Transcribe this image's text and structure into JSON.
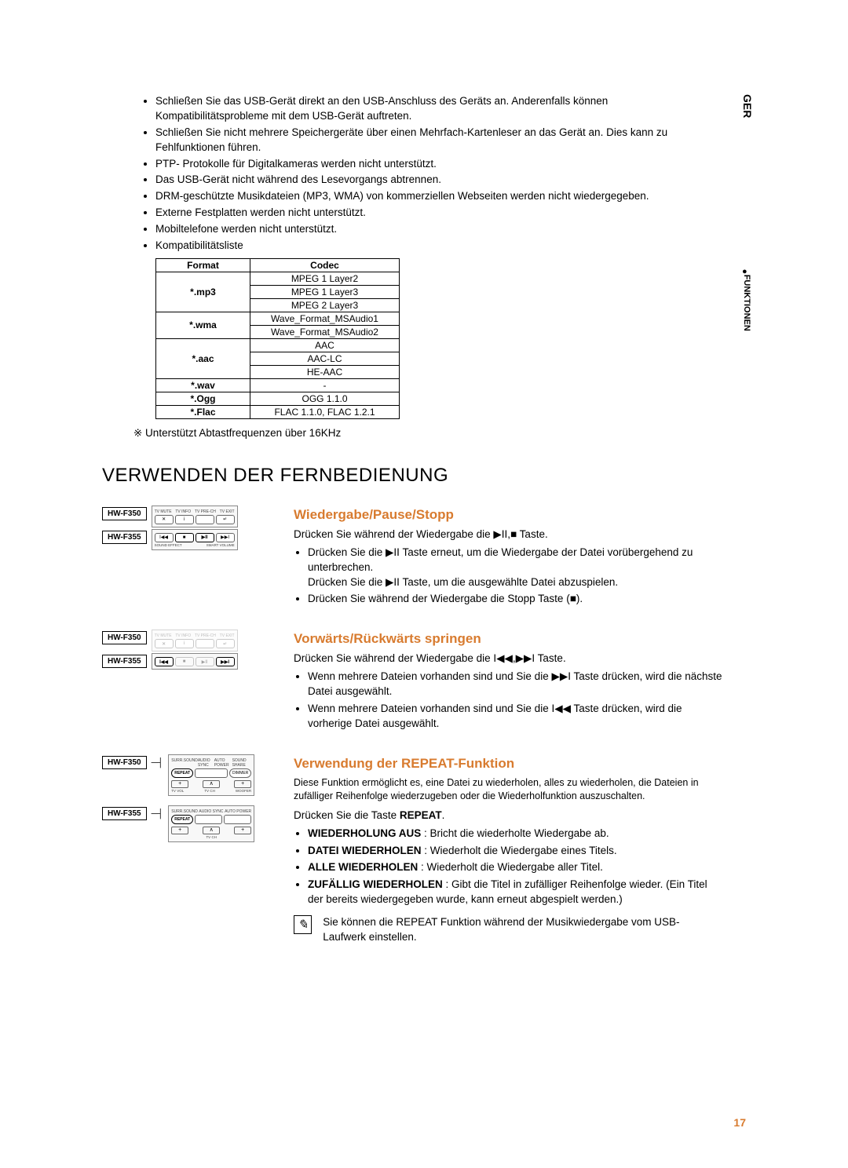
{
  "side": {
    "region": "GER",
    "section": "FUNKTIONEN"
  },
  "page_number": "17",
  "bullets": [
    "Schließen Sie das USB-Gerät direkt an den USB-Anschluss des Geräts an. Anderenfalls können Kompatibilitätsprobleme mit dem USB-Gerät auftreten.",
    "Schließen Sie nicht mehrere Speichergeräte über einen Mehrfach-Kartenleser an das Gerät an. Dies kann zu Fehlfunktionen führen.",
    "PTP- Protokolle für Digitalkameras werden nicht unterstützt.",
    "Das USB-Gerät nicht während des Lesevorgangs abtrennen.",
    "DRM-geschützte Musikdateien (MP3, WMA) von kommerziellen Webseiten werden nicht wiedergegeben.",
    "Externe Festplatten werden nicht unterstützt.",
    "Mobiltelefone werden nicht unterstützt.",
    "Kompatibilitätsliste"
  ],
  "codec_table": {
    "headers": [
      "Format",
      "Codec"
    ],
    "rows": [
      {
        "format": "*.mp3",
        "codecs": [
          "MPEG 1 Layer2",
          "MPEG 1 Layer3",
          "MPEG 2 Layer3"
        ]
      },
      {
        "format": "*.wma",
        "codecs": [
          "Wave_Format_MSAudio1",
          "Wave_Format_MSAudio2"
        ]
      },
      {
        "format": "*.aac",
        "codecs": [
          "AAC",
          "AAC-LC",
          "HE-AAC"
        ]
      },
      {
        "format": "*.wav",
        "codecs": [
          "-"
        ]
      },
      {
        "format": "*.Ogg",
        "codecs": [
          "OGG 1.1.0"
        ]
      },
      {
        "format": "*.Flac",
        "codecs": [
          "FLAC 1.1.0, FLAC 1.2.1"
        ]
      }
    ]
  },
  "note_freq": "※ Unterstützt Abtastfrequenzen über 16KHz",
  "h1": "VERWENDEN DER FERNBEDIENUNG",
  "models": {
    "a": "HW-F350",
    "b": "HW-F355"
  },
  "section1": {
    "heading": "Wiedergabe/Pause/Stopp",
    "intro": "Drücken Sie während der Wiedergabe die ▶II,■ Taste.",
    "items": [
      "Drücken Sie die ▶II Taste erneut, um die Wiedergabe der Datei vorübergehend zu unterbrechen.\nDrücken Sie die ▶II Taste, um die ausgewählte Datei abzuspielen.",
      "Drücken Sie während der Wiedergabe die Stopp Taste (■)."
    ]
  },
  "section2": {
    "heading": "Vorwärts/Rückwärts springen",
    "intro": "Drücken Sie während der Wiedergabe die I◀◀,▶▶I Taste.",
    "items": [
      "Wenn mehrere Dateien vorhanden sind und Sie die ▶▶I Taste drücken, wird die nächste Datei ausgewählt.",
      "Wenn mehrere Dateien vorhanden sind und Sie die I◀◀ Taste drücken, wird die vorherige Datei ausgewählt."
    ]
  },
  "section3": {
    "heading": "Verwendung der REPEAT-Funktion",
    "intro1": "Diese Funktion ermöglicht es, eine Datei zu wiederholen, alles zu wiederholen, die Dateien in zufälliger Reihenfolge wiederzugeben oder die Wiederholfunktion auszuschalten.",
    "intro2_pre": "Drücken Sie die Taste ",
    "intro2_bold": "REPEAT",
    "intro2_post": ".",
    "items": [
      {
        "bold": "WIEDERHOLUNG AUS",
        "rest": " : Bricht die wiederholte Wiedergabe ab."
      },
      {
        "bold": "DATEI WIEDERHOLEN",
        "rest": " : Wiederholt die Wiedergabe eines Titels."
      },
      {
        "bold": "ALLE WIEDERHOLEN",
        "rest": " : Wiederholt die Wiedergabe aller Titel."
      },
      {
        "bold": "ZUFÄLLIG WIEDERHOLEN",
        "rest": " : Gibt die Titel in zufälliger Reihenfolge wieder. (Ein Titel der bereits wiedergegeben wurde, kann erneut abgespielt werden.)"
      }
    ],
    "note": "Sie können die REPEAT Funktion während der Musikwiedergabe vom USB-Laufwerk einstellen."
  },
  "remote_labels": {
    "top": [
      "TV MUTE",
      "TV INFO",
      "TV PRE-CH",
      "TV EXIT"
    ],
    "bot1": [
      "SOUND EFFECT",
      "",
      "",
      "SMART VOLUME"
    ],
    "top3": [
      "SURR.SOUND",
      "AUDIO SYNC",
      "AUTO POWER",
      "SOUND SHARE"
    ],
    "bot3": [
      "TV VOL",
      "TV CH",
      "WOOFER"
    ],
    "top3b": [
      "SURR.SOUND",
      "AUDIO SYNC",
      "AUTO POWER"
    ],
    "bot3b": [
      "",
      "TV CH",
      ""
    ]
  }
}
